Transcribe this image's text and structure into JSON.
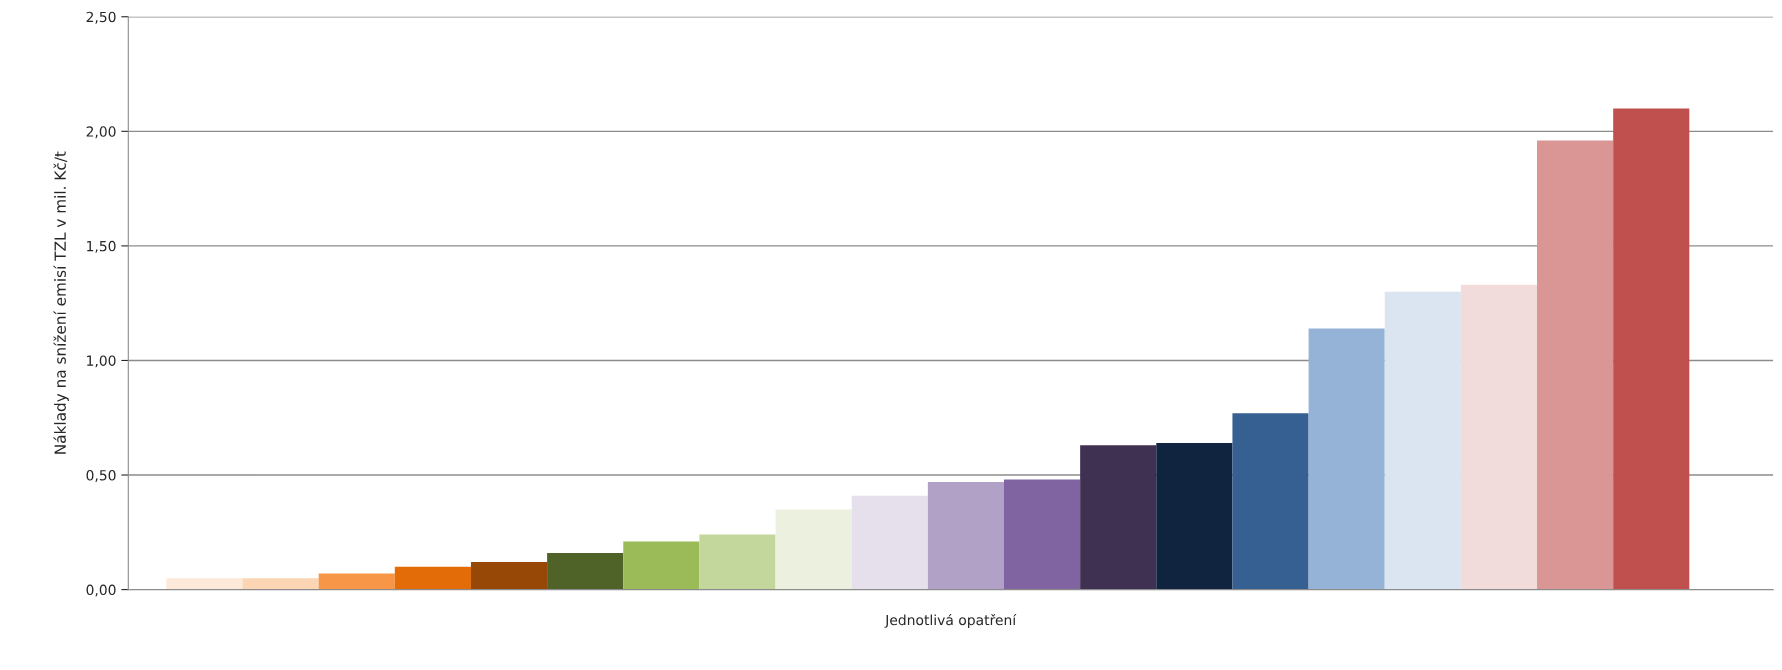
{
  "chart_data": {
    "type": "bar",
    "xlabel": "Jednotlivá opatření",
    "ylabel": "Náklady na snížení emisí TZL v mil. Kč/t",
    "categories": [
      null,
      null,
      null,
      null,
      null,
      null,
      null,
      null,
      null,
      null,
      null,
      null,
      null,
      null,
      null,
      null,
      null,
      null,
      null,
      null
    ],
    "values": [
      0.05,
      0.05,
      0.07,
      0.1,
      0.12,
      0.16,
      0.21,
      0.24,
      0.35,
      0.41,
      0.47,
      0.48,
      0.63,
      0.64,
      0.77,
      1.14,
      1.3,
      1.33,
      1.96,
      2.1
    ],
    "colors": [
      "#fde9d9",
      "#fcd5b5",
      "#f79646",
      "#e36c09",
      "#974806",
      "#4f6228",
      "#9bbb59",
      "#c3d69b",
      "#ebf1de",
      "#e5e0ec",
      "#b2a1c7",
      "#8064a2",
      "#3f3151",
      "#10243f",
      "#366092",
      "#95b3d7",
      "#dbe5f1",
      "#f2dcdb",
      "#d99694",
      "#c0504d"
    ],
    "ylim": [
      0,
      2.5
    ],
    "yticks": [
      {
        "value": 0,
        "label": "0,00"
      },
      {
        "value": 0.5,
        "label": "0,50"
      },
      {
        "value": 1.0,
        "label": "1,00"
      },
      {
        "value": 1.5,
        "label": "1,50"
      },
      {
        "value": 2.0,
        "label": "2,00"
      },
      {
        "value": 2.5,
        "label": "2,50"
      }
    ],
    "grid": "y"
  }
}
